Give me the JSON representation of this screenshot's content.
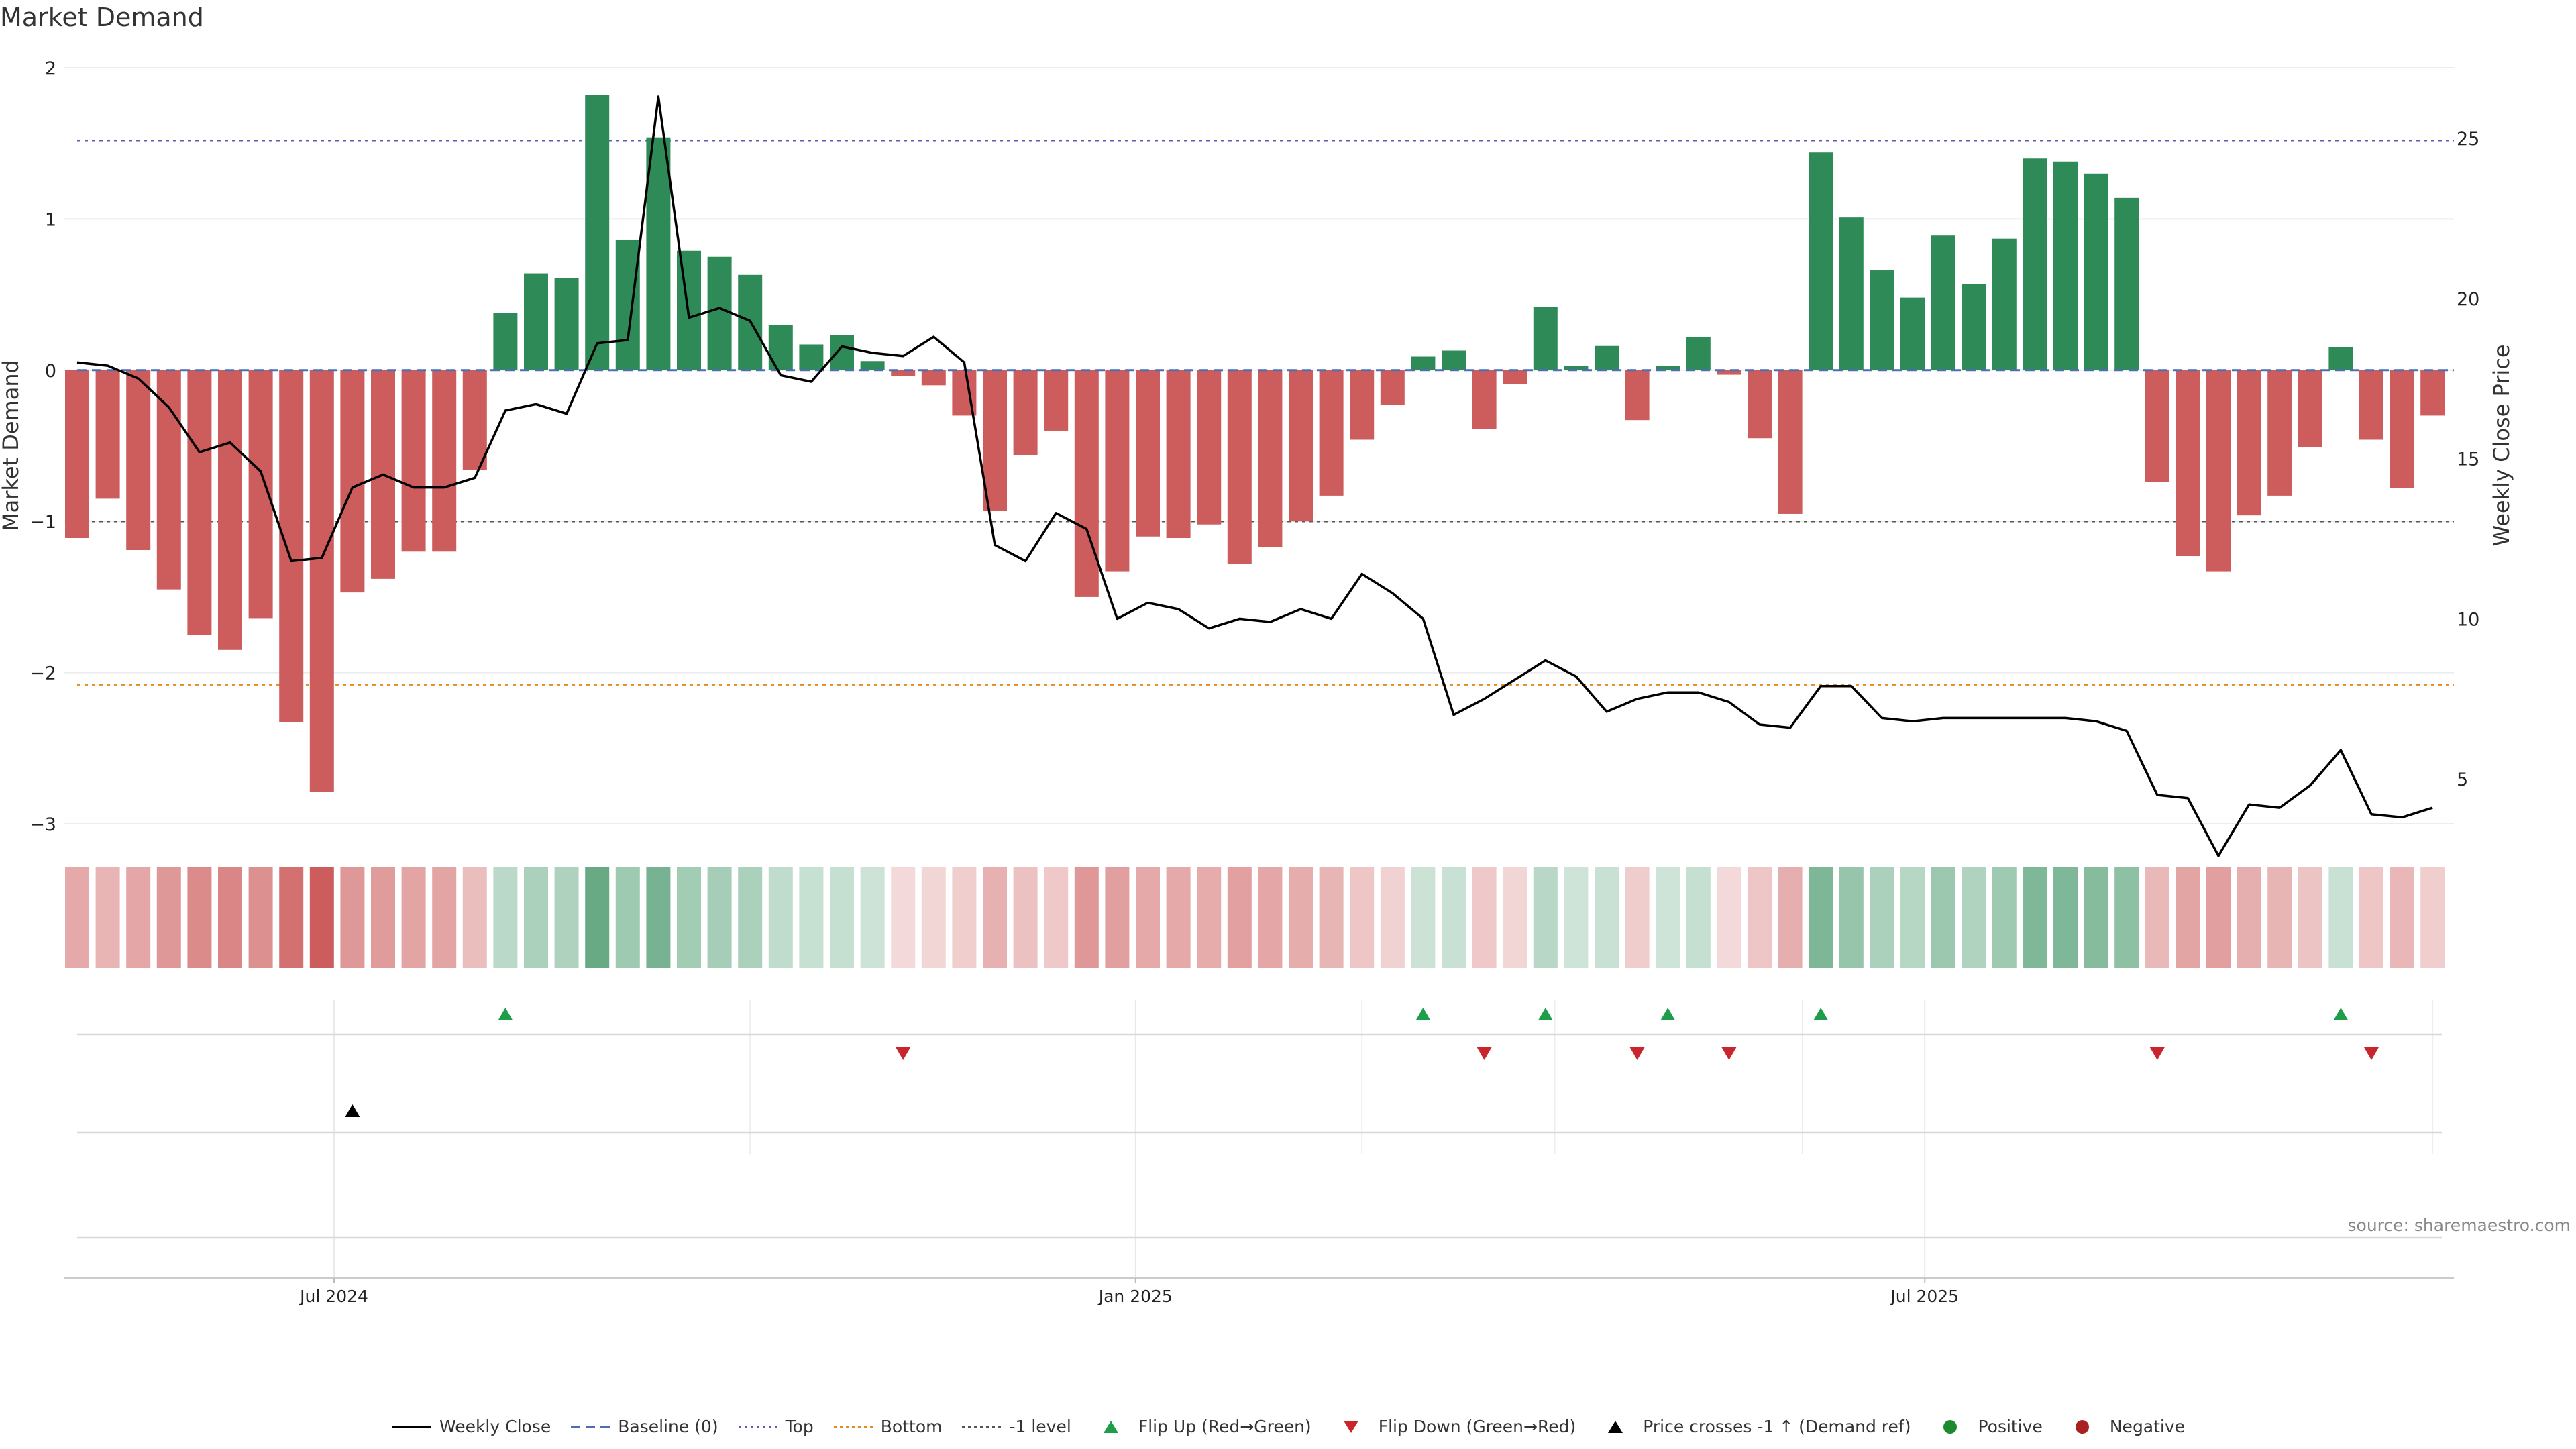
{
  "title": "Market Demand",
  "source": "source: sharemaestro.com",
  "colors": {
    "positive": "#2e8b57",
    "negative": "#cd5c5c",
    "price": "#000000",
    "baseline": "#4a6fb5",
    "top": "#5b5bb5",
    "bottom": "#e58a1f",
    "minus_one": "#555555",
    "flip_up": "#1e9e4a",
    "flip_down": "#c8252c",
    "cross": "#000000",
    "dot_positive": "#1e8a2e",
    "dot_negative": "#a82222"
  },
  "legend": [
    {
      "key": "price",
      "label": "Weekly Close",
      "symbol": "solid-line"
    },
    {
      "key": "baseline",
      "label": "Baseline (0)",
      "symbol": "dashed-line"
    },
    {
      "key": "top",
      "label": "Top",
      "symbol": "dotted-line"
    },
    {
      "key": "bottom",
      "label": "Bottom",
      "symbol": "dotted-line"
    },
    {
      "key": "minus_one",
      "label": "-1 level",
      "symbol": "dotted-line"
    },
    {
      "key": "flip_up",
      "label": "Flip Up (Red→Green)",
      "symbol": "triangle-up"
    },
    {
      "key": "flip_down",
      "label": "Flip Down (Green→Red)",
      "symbol": "triangle-down"
    },
    {
      "key": "cross",
      "label": "Price crosses -1 ↑ (Demand ref)",
      "symbol": "triangle-up"
    },
    {
      "key": "dot_positive",
      "label": "Positive",
      "symbol": "dot"
    },
    {
      "key": "dot_negative",
      "label": "Negative",
      "symbol": "dot"
    }
  ],
  "chart_data": {
    "type": "bar",
    "title": "Market Demand",
    "ylabel": "Market Demand",
    "y2label": "Weekly Close Price",
    "ylim": [
      -3,
      2
    ],
    "y2lim": [
      3.6,
      27.2
    ],
    "yticks": [
      2,
      1,
      0,
      -1,
      -2,
      -3
    ],
    "ytick_labels": [
      "2",
      "1",
      "0",
      "−1",
      "−2",
      "−3"
    ],
    "y2ticks": [
      25,
      20,
      15,
      10,
      5
    ],
    "y2tick_labels": [
      "25",
      "20",
      "15",
      "10",
      "5"
    ],
    "xticks": [
      {
        "label": "Jul 2024",
        "index": 8.4
      },
      {
        "label": "Jan 2025",
        "index": 34.6
      },
      {
        "label": "Jul 2025",
        "index": 60.4
      }
    ],
    "reference_lines": {
      "baseline": 0,
      "top": 1.52,
      "bottom": -2.08,
      "minus_one": -1
    },
    "series": [
      {
        "name": "Market Demand",
        "values": [
          -1.11,
          -0.85,
          -1.19,
          -1.45,
          -1.75,
          -1.85,
          -1.64,
          -2.33,
          -2.79,
          -1.47,
          -1.38,
          -1.2,
          -1.2,
          -0.66,
          0.38,
          0.64,
          0.61,
          1.82,
          0.86,
          1.54,
          0.79,
          0.75,
          0.63,
          0.3,
          0.17,
          0.23,
          0.06,
          -0.04,
          -0.1,
          -0.3,
          -0.93,
          -0.56,
          -0.4,
          -1.5,
          -1.33,
          -1.1,
          -1.11,
          -1.02,
          -1.28,
          -1.17,
          -1.0,
          -0.83,
          -0.46,
          -0.23,
          0.09,
          0.13,
          -0.39,
          -0.09,
          0.42,
          0.03,
          0.16,
          -0.33,
          0.03,
          0.22,
          -0.03,
          -0.45,
          -0.95,
          1.44,
          1.01,
          0.66,
          0.48,
          0.89,
          0.57,
          0.87,
          1.4,
          1.38,
          1.3,
          1.14,
          -0.74,
          -1.23,
          -1.33,
          -0.96,
          -0.83,
          -0.51,
          0.15,
          -0.46,
          -0.78,
          -0.3
        ]
      },
      {
        "name": "Weekly Close",
        "values": [
          18.0,
          17.9,
          17.5,
          16.6,
          15.2,
          15.5,
          14.6,
          11.8,
          11.9,
          14.1,
          14.5,
          14.1,
          14.1,
          14.4,
          16.5,
          16.7,
          16.4,
          18.6,
          18.7,
          26.3,
          19.4,
          19.7,
          19.3,
          17.6,
          17.4,
          18.5,
          18.3,
          18.2,
          18.8,
          18.0,
          12.3,
          11.8,
          13.3,
          12.8,
          10.0,
          10.5,
          10.3,
          9.7,
          10.0,
          9.9,
          10.3,
          10.0,
          11.4,
          10.8,
          10.0,
          7.0,
          7.5,
          8.1,
          8.7,
          8.2,
          7.1,
          7.5,
          7.7,
          7.7,
          7.4,
          6.7,
          6.6,
          7.9,
          7.9,
          6.9,
          6.8,
          6.9,
          6.9,
          6.9,
          6.9,
          6.9,
          6.8,
          6.5,
          4.5,
          4.4,
          2.6,
          4.2,
          4.1,
          4.8,
          5.9,
          3.9,
          3.8,
          4.1
        ]
      },
      {
        "name": "Flip Up (Red→Green)",
        "indices": [
          14,
          44,
          48,
          52,
          57,
          74
        ]
      },
      {
        "name": "Flip Down (Green→Red)",
        "indices": [
          27,
          46,
          51,
          54,
          68,
          75
        ]
      },
      {
        "name": "Price crosses -1 ↑ (Demand ref)",
        "indices": [
          9
        ]
      }
    ]
  }
}
